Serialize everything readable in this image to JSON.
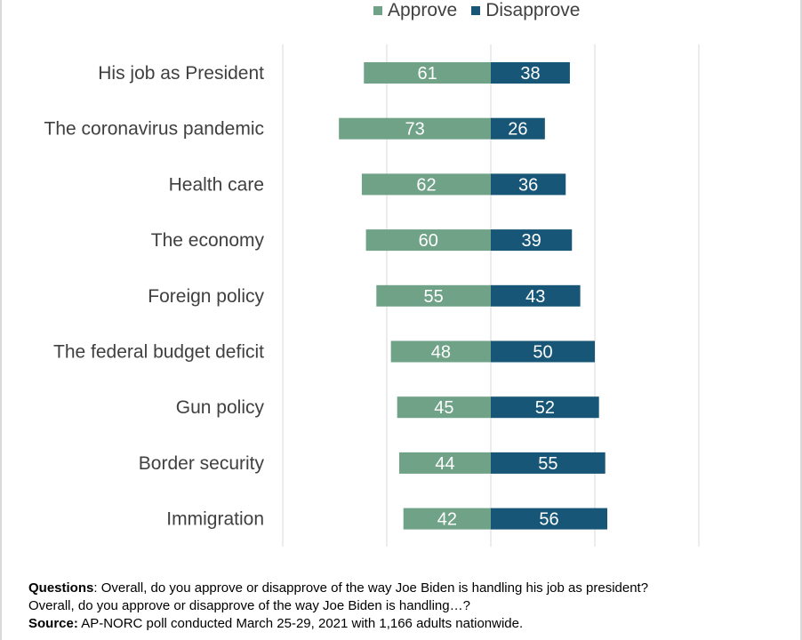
{
  "legend": {
    "approve": "Approve",
    "disapprove": "Disapprove"
  },
  "colors": {
    "approve": "#6fa287",
    "disapprove": "#175676",
    "grid": "#d9d9d9"
  },
  "chart_data": {
    "type": "bar",
    "orientation": "horizontal-diverging",
    "categories": [
      "His job as President",
      "The coronavirus pandemic",
      "Health care",
      "The economy",
      "Foreign policy",
      "The federal budget deficit",
      "Gun policy",
      "Border security",
      "Immigration"
    ],
    "series": [
      {
        "name": "Approve",
        "values": [
          61,
          73,
          62,
          60,
          55,
          48,
          45,
          44,
          42
        ]
      },
      {
        "name": "Disapprove",
        "values": [
          38,
          26,
          36,
          39,
          43,
          50,
          52,
          55,
          56
        ]
      }
    ],
    "xlim": [
      -100,
      100
    ],
    "grid": true,
    "legend_position": "top"
  },
  "footnote": {
    "questions_label": "Questions",
    "questions_text": ": Overall, do you approve or disapprove of the way Joe Biden is handling his job as president?",
    "questions_text2": "Overall, do you approve or disapprove of the way Joe Biden is handling…?",
    "source_label": "Source:",
    "source_text": " AP-NORC poll conducted March 25-29, 2021 with 1,166 adults nationwide."
  }
}
